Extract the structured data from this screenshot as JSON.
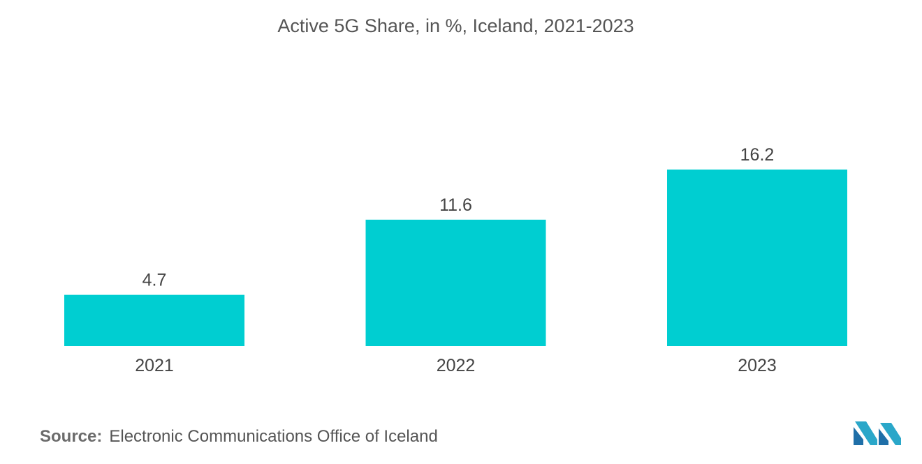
{
  "chart_data": {
    "type": "bar",
    "title": "Active 5G Share, in %, Iceland, 2021-2023",
    "categories": [
      "2021",
      "2022",
      "2023"
    ],
    "values": [
      4.7,
      11.6,
      16.2
    ],
    "value_labels": [
      "4.7",
      "11.6",
      "16.2"
    ],
    "xlabel": "",
    "ylabel": "",
    "ylim": [
      0,
      16.2
    ],
    "grid": false,
    "legend": "none",
    "bar_color": "#00CED1"
  },
  "source": {
    "label": "Source:",
    "text": "Electronic Communications Office of Iceland"
  },
  "logo": {
    "icon": "mordor-intelligence-logo"
  }
}
